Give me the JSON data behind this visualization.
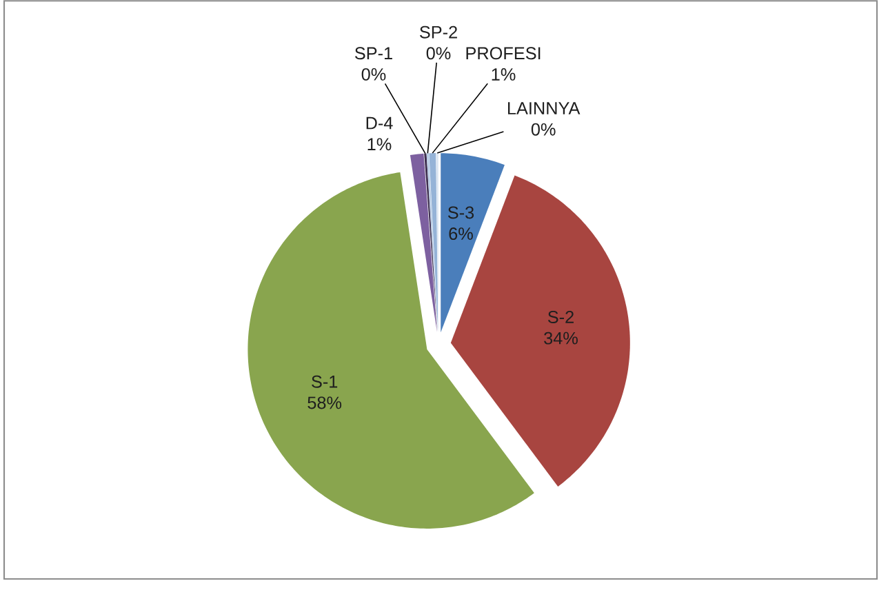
{
  "chart_data": {
    "type": "pie",
    "categories": [
      "S-3",
      "S-2",
      "S-1",
      "D-4",
      "SP-1",
      "SP-2",
      "PROFESI",
      "LAINNYA"
    ],
    "values": [
      5.8,
      34.0,
      57.8,
      1.2,
      0.2,
      0.2,
      0.6,
      0.2
    ],
    "value_labels": [
      "6%",
      "34%",
      "58%",
      "1%",
      "0%",
      "0%",
      "1%",
      "0%"
    ],
    "colors": [
      "#4a7ebb",
      "#a84540",
      "#89a54e",
      "#7d60a0",
      "#3f3151",
      "#b9cde5",
      "#95b3d7",
      "#dbe5f1"
    ]
  }
}
